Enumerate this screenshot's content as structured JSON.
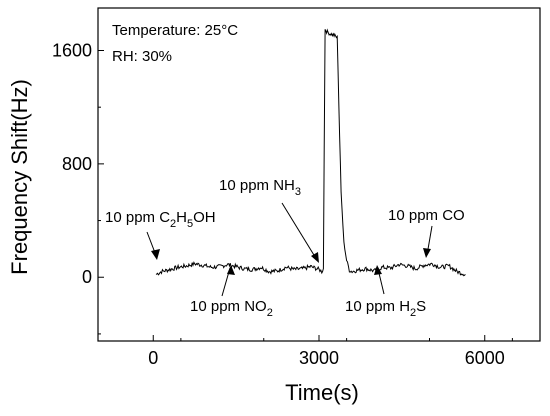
{
  "chart_data": {
    "type": "line",
    "title": "",
    "xlabel": "Time(s)",
    "ylabel": "Frequency Shift(Hz)",
    "xlim": [
      -1000,
      7000
    ],
    "ylim": [
      -450,
      1900
    ],
    "x_ticks": [
      0,
      3000,
      6000
    ],
    "x_tick_labels": [
      "0",
      "3000",
      "6000"
    ],
    "y_ticks": [
      0,
      800,
      1600
    ],
    "y_tick_labels": [
      "0",
      "800",
      "1600"
    ],
    "grid": false,
    "legend": "none",
    "notes": [
      "Temperature: 25°C",
      "RH: 30%"
    ],
    "annotations": [
      {
        "label": "10 ppm C",
        "sub": "2",
        "label2": "H",
        "sub2": "5",
        "label3": "OH",
        "point": [
          50,
          40
        ]
      },
      {
        "label": "10 ppm NO",
        "sub": "2",
        "point": [
          1400,
          40
        ]
      },
      {
        "label": "10 ppm NH",
        "sub": "3",
        "point": [
          3050,
          50
        ]
      },
      {
        "label": "10 ppm H",
        "sub": "2",
        "label2": "S",
        "point": [
          4000,
          40
        ]
      },
      {
        "label": "10 ppm CO",
        "point": [
          5000,
          90
        ]
      }
    ],
    "series": [
      {
        "x": [
          50,
          150,
          300,
          450,
          600,
          750,
          900,
          1050,
          1200,
          1350,
          1500,
          1650,
          1800,
          1950,
          2100,
          2250,
          2400,
          2550,
          2700,
          2850,
          3000,
          3050,
          3080,
          3110,
          3150,
          3200,
          3260,
          3300,
          3330,
          3360,
          3400,
          3450,
          3500,
          3550,
          3600,
          3700,
          3850,
          4000,
          4150,
          4300,
          4450,
          4600,
          4750,
          4900,
          5050,
          5200,
          5350,
          5500,
          5650
        ],
        "y": [
          20,
          40,
          55,
          70,
          80,
          95,
          85,
          70,
          75,
          90,
          75,
          60,
          55,
          70,
          40,
          45,
          70,
          55,
          60,
          75,
          55,
          40,
          60,
          1750,
          1730,
          1720,
          1710,
          1700,
          1690,
          1200,
          600,
          250,
          120,
          50,
          40,
          50,
          60,
          45,
          70,
          65,
          90,
          80,
          60,
          85,
          95,
          70,
          80,
          40,
          20
        ]
      }
    ]
  }
}
